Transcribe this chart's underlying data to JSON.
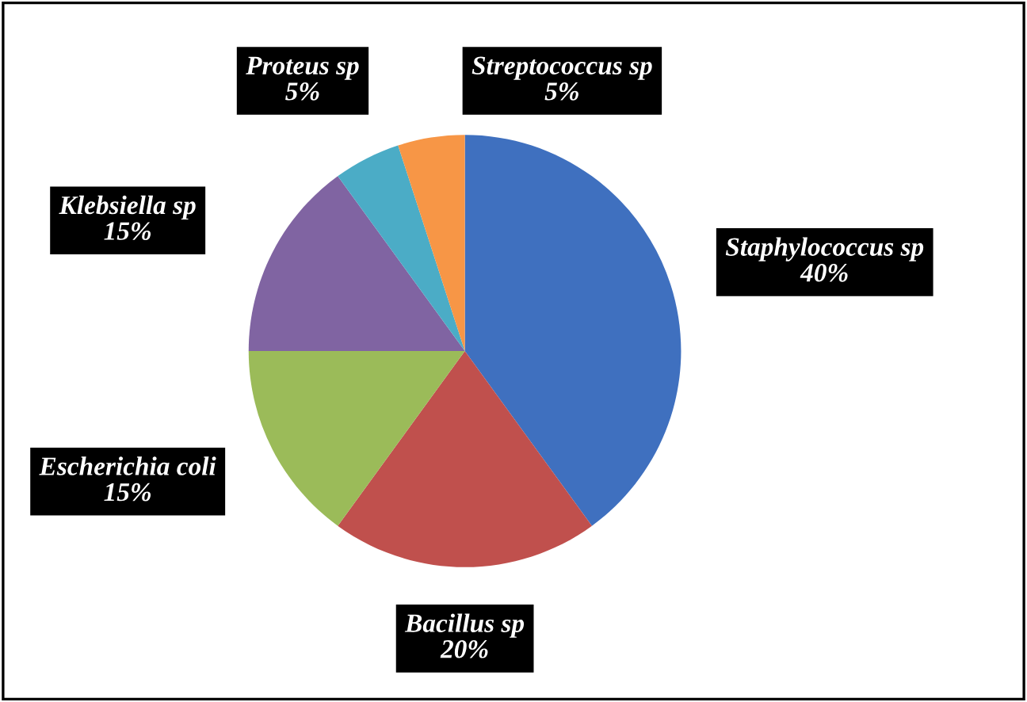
{
  "chart_data": {
    "type": "pie",
    "categories": [
      "Staphylococcus sp",
      "Bacillus sp",
      "Escherichia coli",
      "Klebsiella sp",
      "Proteus sp",
      "Streptococcus sp"
    ],
    "values": [
      40,
      20,
      15,
      15,
      5,
      5
    ],
    "colors": [
      "#3f70bf",
      "#c0504d",
      "#9bbb59",
      "#8064a2",
      "#4bacc6",
      "#f79646"
    ],
    "value_labels": [
      "40%",
      "20%",
      "15%",
      "15%",
      "5%",
      "5%"
    ],
    "legend": false
  }
}
